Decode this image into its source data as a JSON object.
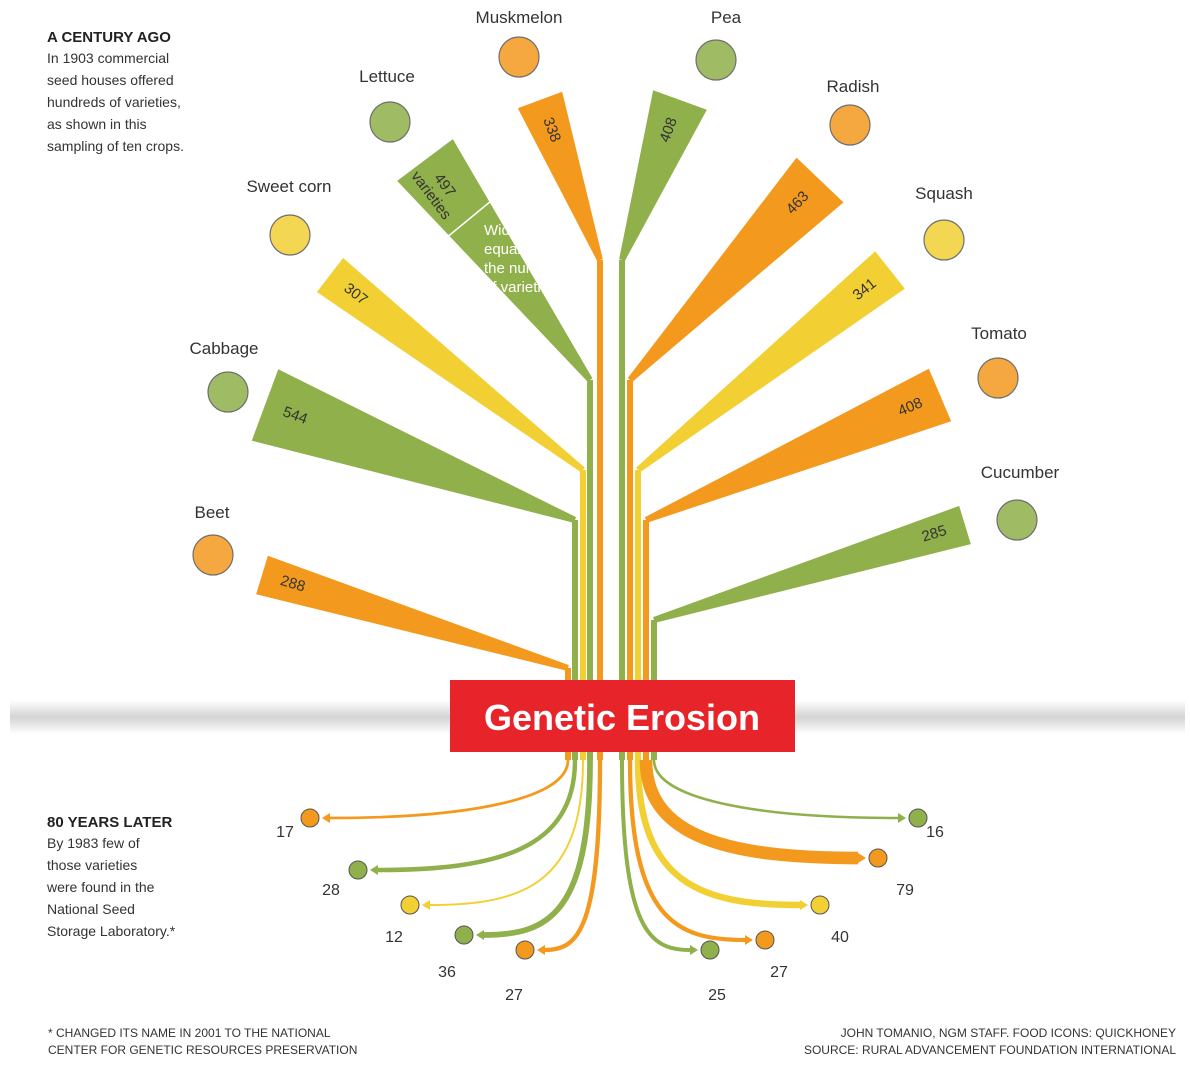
{
  "header": {
    "title": "A CENTURY AGO",
    "lines": [
      "In 1903 commercial",
      "seed houses offered",
      "hundreds of varieties,",
      "as shown in this",
      "sampling of ten crops."
    ]
  },
  "annotation": {
    "unit": "varieties",
    "lines": [
      "Width",
      "equals",
      "the number",
      "of varieties"
    ]
  },
  "banner": "Genetic Erosion",
  "later": {
    "title": "80 YEARS LATER",
    "lines": [
      "By 1983 few of",
      "those varieties",
      "were found in the",
      "National Seed",
      "Storage Laboratory.*"
    ]
  },
  "footnote": [
    "* CHANGED ITS NAME IN 2001 TO THE NATIONAL",
    "CENTER FOR GENETIC RESOURCES PRESERVATION"
  ],
  "credits": [
    "JOHN TOMANIO, NGM STAFF. FOOD ICONS: QUICKHONEY",
    "SOURCE: RURAL ADVANCEMENT FOUNDATION INTERNATIONAL"
  ],
  "crops": [
    {
      "name": "Beet",
      "varieties_1903": 288,
      "varieties_1983": 17,
      "color": "#f39a1e"
    },
    {
      "name": "Cabbage",
      "varieties_1903": 544,
      "varieties_1983": 28,
      "color": "#8fb04a"
    },
    {
      "name": "Sweet corn",
      "varieties_1903": 307,
      "varieties_1983": 12,
      "color": "#f2cf33"
    },
    {
      "name": "Lettuce",
      "varieties_1903": 497,
      "varieties_1983": 36,
      "color": "#8fb04a"
    },
    {
      "name": "Muskmelon",
      "varieties_1903": 338,
      "varieties_1983": 27,
      "color": "#f39a1e"
    },
    {
      "name": "Pea",
      "varieties_1903": 408,
      "varieties_1983": 25,
      "color": "#8fb04a"
    },
    {
      "name": "Radish",
      "varieties_1903": 463,
      "varieties_1983": 27,
      "color": "#f39a1e"
    },
    {
      "name": "Squash",
      "varieties_1903": 341,
      "varieties_1983": 40,
      "color": "#f2cf33"
    },
    {
      "name": "Tomato",
      "varieties_1903": 408,
      "varieties_1983": 79,
      "color": "#f39a1e"
    },
    {
      "name": "Cucumber",
      "varieties_1903": 285,
      "varieties_1983": 16,
      "color": "#8fb04a"
    }
  ]
}
